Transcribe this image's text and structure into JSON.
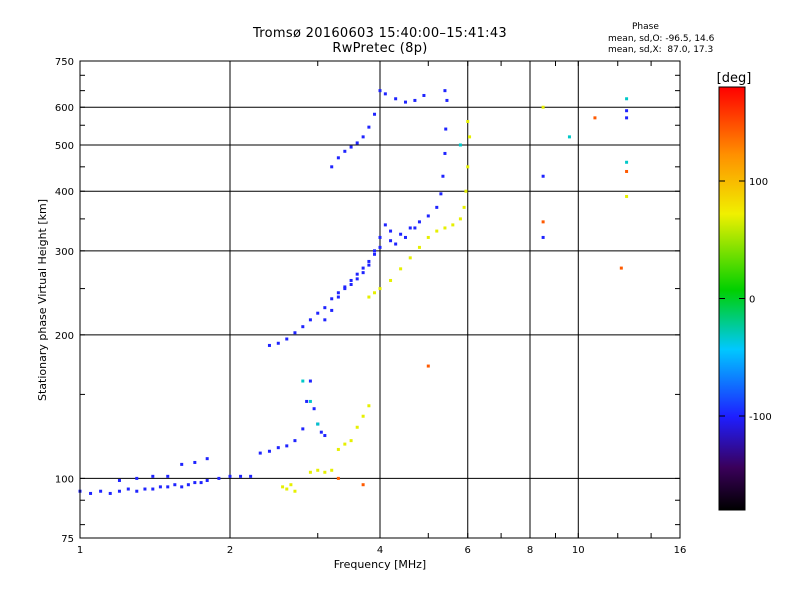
{
  "chart_data": {
    "type": "scatter",
    "title": "Tromsø 20160603 15:40:00–15:41:43",
    "subtitle": "RwPretec (8p)",
    "xlabel": "Frequency [MHz]",
    "ylabel": "Stationary phase Virtual Height [km]",
    "x_scale": "log",
    "y_scale": "log",
    "xlim": [
      1,
      16
    ],
    "ylim": [
      75,
      750
    ],
    "x_ticks": [
      1,
      2,
      4,
      6,
      8,
      10,
      16
    ],
    "x_tick_labels": [
      "1",
      "2",
      "4",
      "6",
      "8",
      "10",
      "16"
    ],
    "y_ticks": [
      75,
      100,
      200,
      300,
      400,
      500,
      600,
      750
    ],
    "y_tick_labels": [
      "75",
      "100",
      "200",
      "300",
      "400",
      "500",
      "600",
      "750"
    ],
    "grid": true,
    "phase_stats": {
      "heading": "Phase",
      "line_o": "mean, sd,O: -96.5, 14.6",
      "line_x": "mean, sd,X:  87.0, 17.3"
    },
    "colorbar": {
      "label": "[deg]",
      "ticks": [
        100,
        0,
        -100
      ],
      "tick_labels": [
        "100",
        "0",
        "-100"
      ],
      "range": [
        -180,
        180
      ]
    },
    "series": [
      {
        "phase": -100,
        "color": "#1f24ff",
        "points": [
          [
            1.0,
            94
          ],
          [
            1.05,
            93
          ],
          [
            1.1,
            94
          ],
          [
            1.15,
            93
          ],
          [
            1.2,
            94
          ],
          [
            1.25,
            95
          ],
          [
            1.3,
            94
          ],
          [
            1.35,
            95
          ],
          [
            1.4,
            95
          ],
          [
            1.45,
            96
          ],
          [
            1.5,
            96
          ],
          [
            1.55,
            97
          ],
          [
            1.6,
            96
          ],
          [
            1.65,
            97
          ],
          [
            1.7,
            98
          ],
          [
            1.75,
            98
          ],
          [
            1.8,
            99
          ],
          [
            1.9,
            100
          ],
          [
            2.0,
            101
          ],
          [
            2.1,
            101
          ],
          [
            2.2,
            101
          ],
          [
            1.2,
            99
          ],
          [
            1.3,
            100
          ],
          [
            1.4,
            101
          ],
          [
            1.5,
            101
          ],
          [
            1.6,
            107
          ],
          [
            1.7,
            108
          ],
          [
            1.8,
            110
          ],
          [
            2.3,
            113
          ],
          [
            2.4,
            114
          ],
          [
            2.5,
            116
          ],
          [
            2.6,
            117
          ],
          [
            2.7,
            120
          ],
          [
            2.8,
            127
          ],
          [
            2.85,
            145
          ],
          [
            2.9,
            160
          ],
          [
            2.95,
            140
          ],
          [
            3.0,
            130
          ],
          [
            3.05,
            125
          ],
          [
            3.1,
            123
          ],
          [
            2.4,
            190
          ],
          [
            2.5,
            192
          ],
          [
            2.6,
            196
          ],
          [
            2.7,
            202
          ],
          [
            2.8,
            208
          ],
          [
            2.9,
            215
          ],
          [
            3.0,
            222
          ],
          [
            3.1,
            228
          ],
          [
            3.2,
            238
          ],
          [
            3.3,
            245
          ],
          [
            3.4,
            252
          ],
          [
            3.5,
            260
          ],
          [
            3.6,
            268
          ],
          [
            3.7,
            276
          ],
          [
            3.8,
            285
          ],
          [
            3.9,
            295
          ],
          [
            4.0,
            305
          ],
          [
            4.2,
            315
          ],
          [
            4.4,
            325
          ],
          [
            4.6,
            335
          ],
          [
            4.8,
            345
          ],
          [
            5.0,
            355
          ],
          [
            5.2,
            370
          ],
          [
            5.3,
            395
          ],
          [
            5.35,
            430
          ],
          [
            5.4,
            480
          ],
          [
            5.42,
            540
          ],
          [
            5.45,
            620
          ],
          [
            5.4,
            650
          ],
          [
            3.1,
            215
          ],
          [
            3.2,
            225
          ],
          [
            3.3,
            240
          ],
          [
            3.4,
            250
          ],
          [
            3.5,
            255
          ],
          [
            3.6,
            262
          ],
          [
            3.7,
            270
          ],
          [
            3.8,
            280
          ],
          [
            3.9,
            300
          ],
          [
            4.0,
            320
          ],
          [
            4.1,
            340
          ],
          [
            4.2,
            330
          ],
          [
            4.3,
            310
          ],
          [
            4.5,
            320
          ],
          [
            4.7,
            335
          ],
          [
            3.2,
            450
          ],
          [
            3.3,
            470
          ],
          [
            3.4,
            485
          ],
          [
            3.5,
            495
          ],
          [
            3.6,
            505
          ],
          [
            3.7,
            520
          ],
          [
            3.8,
            545
          ],
          [
            3.9,
            580
          ],
          [
            4.0,
            650
          ],
          [
            4.1,
            640
          ],
          [
            4.3,
            625
          ],
          [
            4.5,
            615
          ],
          [
            4.7,
            620
          ],
          [
            4.9,
            635
          ],
          [
            8.5,
            430
          ],
          [
            8.5,
            320
          ],
          [
            12.5,
            570
          ],
          [
            12.5,
            590
          ]
        ]
      },
      {
        "phase": 100,
        "color": "#e6f000",
        "points": [
          [
            2.55,
            96
          ],
          [
            2.6,
            95
          ],
          [
            2.65,
            97
          ],
          [
            2.7,
            94
          ],
          [
            2.9,
            103
          ],
          [
            3.0,
            104
          ],
          [
            3.1,
            103
          ],
          [
            3.2,
            104
          ],
          [
            3.3,
            115
          ],
          [
            3.4,
            118
          ],
          [
            3.5,
            120
          ],
          [
            3.6,
            128
          ],
          [
            3.7,
            135
          ],
          [
            3.8,
            142
          ],
          [
            3.8,
            240
          ],
          [
            3.9,
            245
          ],
          [
            4.0,
            250
          ],
          [
            4.2,
            260
          ],
          [
            4.4,
            275
          ],
          [
            4.6,
            290
          ],
          [
            4.8,
            305
          ],
          [
            5.0,
            320
          ],
          [
            5.2,
            330
          ],
          [
            5.4,
            335
          ],
          [
            5.6,
            340
          ],
          [
            5.8,
            350
          ],
          [
            5.9,
            370
          ],
          [
            5.95,
            400
          ],
          [
            6.0,
            450
          ],
          [
            6.05,
            520
          ],
          [
            6.0,
            560
          ],
          [
            8.5,
            600
          ],
          [
            12.5,
            390
          ]
        ]
      },
      {
        "phase": 0,
        "color": "#00c8c8",
        "points": [
          [
            2.8,
            160
          ],
          [
            2.9,
            145
          ],
          [
            3.0,
            130
          ],
          [
            5.8,
            500
          ],
          [
            9.6,
            520
          ],
          [
            12.5,
            625
          ],
          [
            12.5,
            460
          ]
        ]
      },
      {
        "phase": 150,
        "color": "#ff5a00",
        "points": [
          [
            3.3,
            100
          ],
          [
            3.7,
            97
          ],
          [
            5.0,
            172
          ],
          [
            10.8,
            570
          ],
          [
            12.5,
            440
          ],
          [
            12.2,
            276
          ],
          [
            8.5,
            345
          ]
        ]
      }
    ]
  }
}
